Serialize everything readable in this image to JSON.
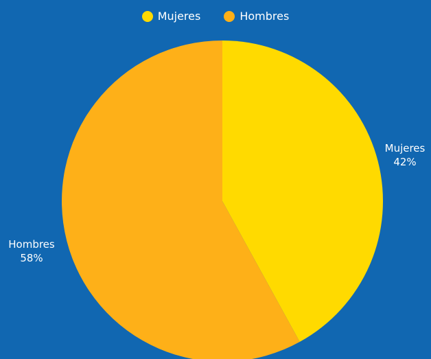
{
  "chart_data": {
    "type": "pie",
    "categories": [
      "Mujeres",
      "Hombres"
    ],
    "values": [
      42,
      58
    ],
    "value_labels": [
      "42%",
      "58%"
    ],
    "colors": [
      "#ffda00",
      "#feb018"
    ],
    "legend": {
      "placement": "top-center",
      "entries": [
        "Mujeres",
        "Hombres"
      ]
    }
  },
  "background_color": "#1167b1"
}
